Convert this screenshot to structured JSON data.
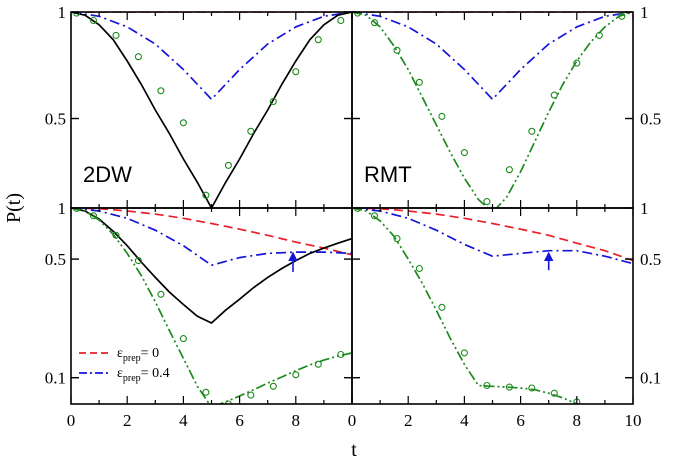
{
  "chart_data": {
    "type": "line",
    "ylabel": "P(t)",
    "xlabel": "t",
    "x_ticks": [
      "0",
      "2",
      "4",
      "6",
      "8",
      "10"
    ],
    "legend": {
      "placement": "bottom-left of lower-left panel",
      "entries": [
        {
          "symbol": "ε",
          "sub": "prep",
          "suffix": "= 0",
          "color": "#e8202a",
          "dash": "dashed"
        },
        {
          "symbol": "ε",
          "sub": "prep",
          "suffix": "= 0.4",
          "color": "#1515d8",
          "dash": "dash-dot"
        }
      ]
    },
    "colors": {
      "red": "#e8202a",
      "blue": "#1515d8",
      "black": "#000000",
      "green": "#1c8a1c"
    },
    "panels": [
      {
        "id": "top-left",
        "label": "2DW",
        "yscale": "linear",
        "xlim": [
          0,
          10
        ],
        "ylim": [
          0.08,
          1.0
        ],
        "y_ticks_left": [
          "1",
          "0.5"
        ],
        "y_tick_values": [
          1,
          0.5
        ],
        "series": [
          {
            "color": "red",
            "dash": "dashed",
            "x": [
              0,
              10
            ],
            "y": [
              1,
              1
            ]
          },
          {
            "color": "blue",
            "dash": "dashdot",
            "x": [
              0,
              1,
              2,
              3,
              4,
              5,
              6,
              7,
              8,
              9,
              10
            ],
            "y": [
              1,
              0.98,
              0.93,
              0.85,
              0.73,
              0.59,
              0.73,
              0.85,
              0.93,
              0.98,
              1
            ]
          },
          {
            "color": "black",
            "dash": "solid",
            "x": [
              0,
              0.5,
              1,
              1.5,
              2,
              2.5,
              3,
              3.5,
              4,
              4.5,
              5,
              5.5,
              6,
              6.5,
              7,
              7.5,
              8,
              8.5,
              9,
              9.5,
              10
            ],
            "y": [
              1,
              0.985,
              0.94,
              0.87,
              0.77,
              0.66,
              0.54,
              0.43,
              0.31,
              0.2,
              0.08,
              0.2,
              0.31,
              0.43,
              0.54,
              0.66,
              0.77,
              0.87,
              0.94,
              0.985,
              1
            ]
          }
        ],
        "markers": [
          {
            "color": "green",
            "x": [
              0.2,
              0.8,
              1.6,
              2.4,
              3.2,
              4.0,
              4.8,
              5.6,
              6.4,
              7.2,
              8.0,
              8.8,
              9.6
            ],
            "y": [
              0.995,
              0.96,
              0.89,
              0.79,
              0.63,
              0.48,
              0.14,
              0.28,
              0.44,
              0.58,
              0.72,
              0.87,
              0.96
            ]
          }
        ]
      },
      {
        "id": "top-right",
        "label": "RMT",
        "yscale": "linear",
        "xlim": [
          0,
          10
        ],
        "ylim": [
          0.08,
          1.0
        ],
        "y_ticks_right": [
          "1",
          "0.5"
        ],
        "y_tick_values": [
          1,
          0.5
        ],
        "series": [
          {
            "color": "red",
            "dash": "dashed",
            "x": [
              0,
              10
            ],
            "y": [
              1,
              1
            ]
          },
          {
            "color": "blue",
            "dash": "dashdot",
            "x": [
              0,
              1,
              2,
              3,
              4,
              5,
              6,
              7,
              8,
              9,
              10
            ],
            "y": [
              1,
              0.98,
              0.93,
              0.85,
              0.73,
              0.59,
              0.73,
              0.85,
              0.93,
              0.98,
              1
            ]
          },
          {
            "color": "green",
            "dash": "dashdotdot",
            "x": [
              0,
              0.5,
              1,
              1.5,
              2,
              2.5,
              3,
              3.5,
              4,
              4.5,
              5,
              5.5,
              6,
              6.5,
              7,
              7.5,
              8,
              8.5,
              9,
              9.5,
              10
            ],
            "y": [
              1,
              0.985,
              0.93,
              0.84,
              0.73,
              0.6,
              0.47,
              0.34,
              0.22,
              0.12,
              0.06,
              0.13,
              0.25,
              0.39,
              0.53,
              0.66,
              0.77,
              0.86,
              0.93,
              0.98,
              1
            ]
          }
        ],
        "markers": [
          {
            "color": "green",
            "x": [
              0.2,
              0.8,
              1.6,
              2.4,
              3.2,
              4.0,
              4.8,
              5.6,
              6.4,
              7.2,
              8.0,
              8.8,
              9.6
            ],
            "y": [
              0.995,
              0.95,
              0.82,
              0.67,
              0.51,
              0.34,
              0.11,
              0.26,
              0.44,
              0.61,
              0.76,
              0.89,
              0.98
            ]
          }
        ]
      },
      {
        "id": "bottom-left",
        "yscale": "log",
        "xlim": [
          0,
          10
        ],
        "ylim": [
          0.07,
          1.0
        ],
        "y_ticks_left": [
          "1",
          "0.5",
          "0.1"
        ],
        "y_tick_values": [
          1,
          0.5,
          0.1
        ],
        "series": [
          {
            "color": "red",
            "dash": "dashed",
            "x": [
              0,
              1,
              2,
              3,
              4,
              5,
              6,
              7,
              8,
              9,
              10
            ],
            "y": [
              1,
              0.99,
              0.96,
              0.92,
              0.87,
              0.81,
              0.75,
              0.69,
              0.63,
              0.58,
              0.53
            ]
          },
          {
            "color": "blue",
            "dash": "dashdot",
            "x": [
              0,
              1,
              2,
              3,
              4,
              5,
              6,
              7,
              8,
              9,
              10
            ],
            "y": [
              1,
              0.96,
              0.87,
              0.74,
              0.6,
              0.46,
              0.51,
              0.54,
              0.55,
              0.55,
              0.54
            ]
          },
          {
            "color": "black",
            "dash": "solid",
            "x": [
              0,
              0.5,
              1,
              1.5,
              2,
              2.5,
              3,
              3.5,
              4,
              4.5,
              5,
              5.5,
              6,
              6.5,
              7,
              7.5,
              8,
              8.5,
              9,
              9.5,
              10
            ],
            "y": [
              1,
              0.96,
              0.86,
              0.73,
              0.6,
              0.48,
              0.39,
              0.32,
              0.27,
              0.23,
              0.21,
              0.25,
              0.29,
              0.34,
              0.39,
              0.44,
              0.49,
              0.54,
              0.58,
              0.62,
              0.66
            ]
          },
          {
            "color": "green",
            "dash": "dashdotdot",
            "x": [
              0,
              0.5,
              1,
              1.5,
              2,
              2.5,
              3,
              3.5,
              4,
              4.5,
              5,
              5.5,
              6,
              6.5,
              7,
              7.5,
              8,
              8.5,
              9,
              9.5,
              10
            ],
            "y": [
              1,
              0.96,
              0.85,
              0.7,
              0.54,
              0.4,
              0.28,
              0.19,
              0.13,
              0.089,
              0.067,
              0.072,
              0.078,
              0.085,
              0.093,
              0.101,
              0.11,
              0.119,
              0.127,
              0.134,
              0.14
            ]
          }
        ],
        "markers": [
          {
            "color": "green",
            "x": [
              0.2,
              0.8,
              1.6,
              2.4,
              3.2,
              4.0,
              4.8,
              5.6,
              6.4,
              7.2,
              8.0,
              8.8,
              9.6
            ],
            "y": [
              0.995,
              0.9,
              0.69,
              0.49,
              0.31,
              0.17,
              0.082,
              0.07,
              0.079,
              0.089,
              0.104,
              0.12,
              0.137
            ]
          }
        ],
        "arrow": {
          "color": "blue",
          "x": 7.9,
          "y_from": 0.42,
          "y_to": 0.54
        }
      },
      {
        "id": "bottom-right",
        "yscale": "log",
        "xlim": [
          0,
          10
        ],
        "ylim": [
          0.07,
          1.0
        ],
        "y_ticks_right": [
          "1",
          "0.5",
          "0.1"
        ],
        "y_tick_values": [
          1,
          0.5,
          0.1
        ],
        "series": [
          {
            "color": "red",
            "dash": "dashed",
            "x": [
              0,
              1,
              2,
              3,
              4,
              5,
              6,
              7,
              8,
              9,
              10
            ],
            "y": [
              1,
              0.99,
              0.96,
              0.92,
              0.87,
              0.81,
              0.75,
              0.69,
              0.62,
              0.56,
              0.49
            ]
          },
          {
            "color": "blue",
            "dash": "dashdot",
            "x": [
              0,
              1,
              2,
              3,
              4,
              5,
              6,
              7,
              8,
              9,
              10
            ],
            "y": [
              1,
              0.96,
              0.87,
              0.74,
              0.61,
              0.52,
              0.54,
              0.56,
              0.56,
              0.52,
              0.47
            ]
          },
          {
            "color": "green",
            "dash": "dashdotdot",
            "x": [
              0,
              0.5,
              1,
              1.5,
              2,
              2.5,
              3,
              3.5,
              4,
              4.5,
              5,
              5.5,
              6,
              6.5,
              7,
              7.5,
              8
            ],
            "y": [
              1,
              0.96,
              0.84,
              0.68,
              0.5,
              0.36,
              0.25,
              0.17,
              0.12,
              0.09,
              0.089,
              0.088,
              0.087,
              0.085,
              0.081,
              0.076,
              0.07
            ]
          }
        ],
        "markers": [
          {
            "color": "green",
            "x": [
              0.2,
              0.8,
              1.6,
              2.4,
              3.2,
              4.0,
              4.8,
              5.6,
              6.4,
              7.2,
              8.0
            ],
            "y": [
              0.995,
              0.9,
              0.66,
              0.44,
              0.26,
              0.14,
              0.09,
              0.088,
              0.087,
              0.081,
              0.072
            ]
          }
        ],
        "arrow": {
          "color": "blue",
          "x": 7.0,
          "y_from": 0.43,
          "y_to": 0.54
        }
      }
    ]
  }
}
